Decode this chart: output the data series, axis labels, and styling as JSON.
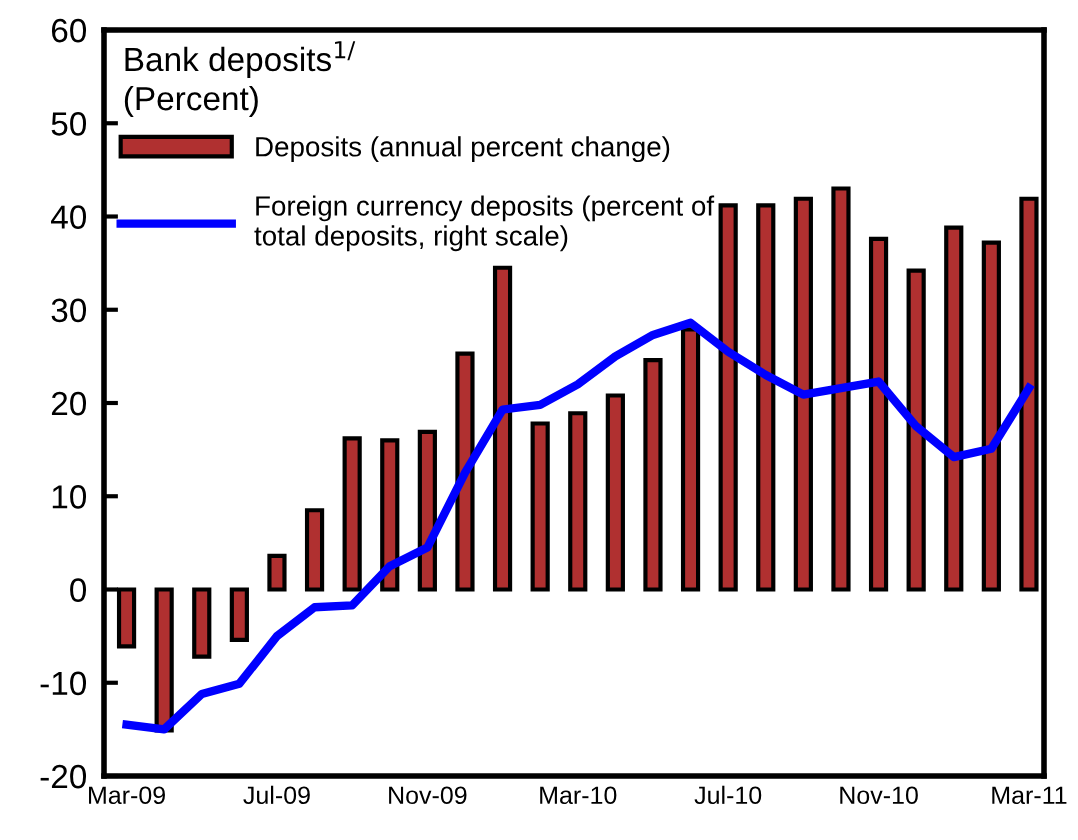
{
  "chart_data": {
    "type": "bar",
    "title": "Bank deposits$^{1/}$",
    "subtitle": "(Percent)",
    "categories": [
      "Mar-09",
      null,
      null,
      null,
      "Jul-09",
      null,
      null,
      null,
      "Nov-09",
      null,
      null,
      null,
      "Mar-10",
      null,
      null,
      null,
      "Jul-10",
      null,
      null,
      null,
      "Nov-10",
      null,
      null,
      null,
      "Mar-11"
    ],
    "series": [
      {
        "name": "Deposits (annual percent change)",
        "color": "#b03030",
        "values": [
          -6.1,
          -15.1,
          -7.2,
          -5.4,
          3.6,
          8.5,
          16.2,
          16.0,
          16.9,
          25.3,
          34.5,
          17.8,
          18.9,
          20.8,
          24.6,
          27.9,
          41.2,
          41.2,
          41.9,
          43.0,
          37.6,
          34.2,
          38.8,
          37.2,
          41.9
        ]
      },
      {
        "name": "Foreign currency deposits (percent of\ntotal deposits, right scale)",
        "type": "line",
        "color": "#0000ff",
        "values": [
          -14.5,
          -15.0,
          -11.2,
          -10.1,
          -5.0,
          -1.9,
          -1.7,
          2.5,
          4.5,
          12.5,
          19.3,
          19.8,
          22.0,
          25.0,
          27.3,
          28.6,
          25.5,
          23.0,
          20.9,
          21.6,
          22.3,
          17.5,
          14.2,
          15.1,
          21.6
        ]
      }
    ],
    "ylim": [
      -20,
      60
    ],
    "yticks": [
      -20,
      -10,
      0,
      10,
      20,
      30,
      40,
      50,
      60
    ],
    "legend": "top left",
    "grid": false
  }
}
